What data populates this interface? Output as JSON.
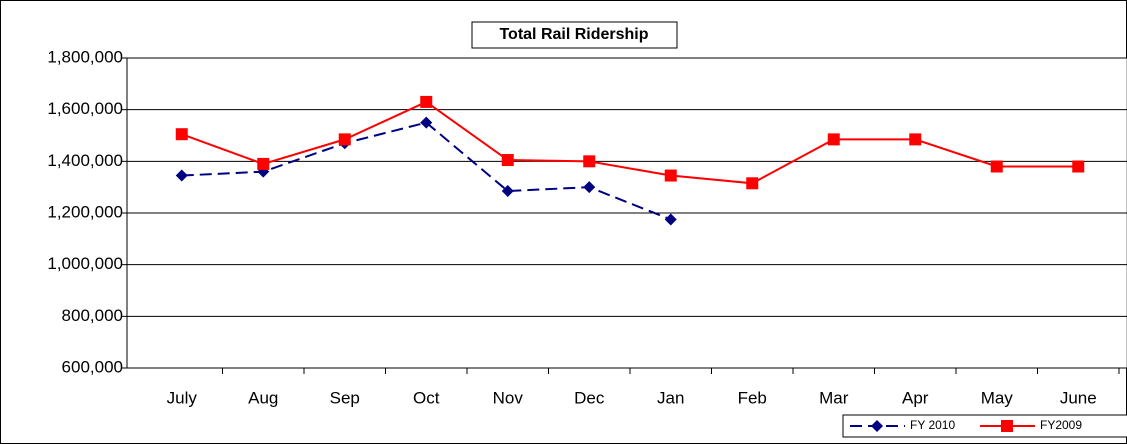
{
  "chart_data": {
    "type": "line",
    "title": "Total Rail Ridership",
    "categories": [
      "July",
      "Aug",
      "Sep",
      "Oct",
      "Nov",
      "Dec",
      "Jan",
      "Feb",
      "Mar",
      "Apr",
      "May",
      "June"
    ],
    "series": [
      {
        "name": "FY 2010",
        "color": "#000080",
        "values": [
          1345000,
          1360000,
          1470000,
          1550000,
          1285000,
          1300000,
          1175000,
          null,
          null,
          null,
          null,
          null
        ]
      },
      {
        "name": "FY2009",
        "color": "#ff0000",
        "values": [
          1505000,
          1390000,
          1485000,
          1630000,
          1405000,
          1400000,
          1345000,
          1315000,
          1485000,
          1485000,
          1380000,
          1380000
        ]
      }
    ],
    "ylim": [
      600000,
      1800000
    ],
    "yticks": [
      {
        "value": 600000,
        "label": "600,000"
      },
      {
        "value": 800000,
        "label": "800,000"
      },
      {
        "value": 1000000,
        "label": "1,000,000"
      },
      {
        "value": 1200000,
        "label": "1,200,000"
      },
      {
        "value": 1400000,
        "label": "1,400,000"
      },
      {
        "value": 1600000,
        "label": "1,600,000"
      },
      {
        "value": 1800000,
        "label": "1,800,000"
      }
    ],
    "grid": true
  }
}
